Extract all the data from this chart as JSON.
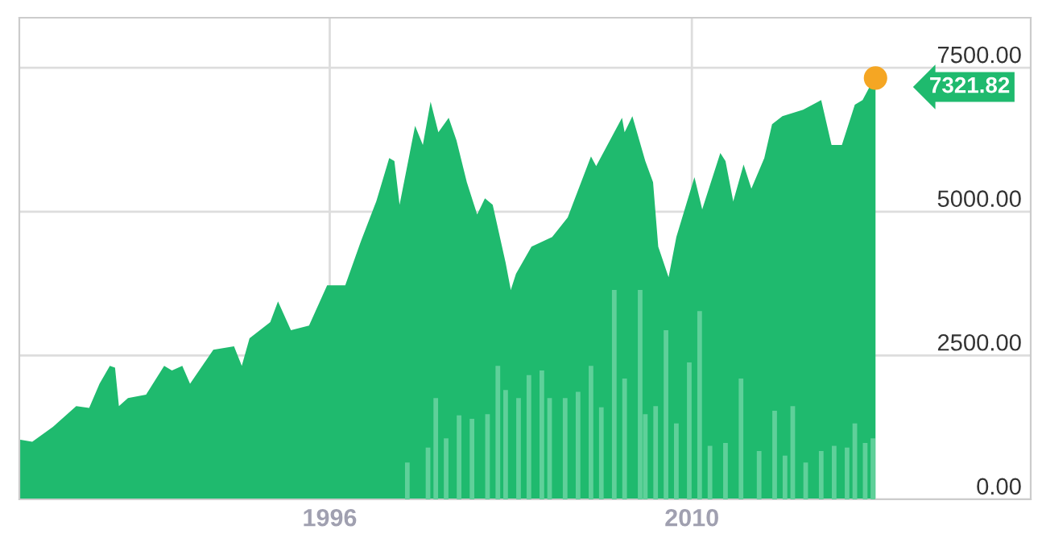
{
  "chart_data": {
    "type": "area",
    "xlim": [
      1984,
      2023.1
    ],
    "ylim": [
      0,
      8370
    ],
    "xticks": [
      1996,
      2010
    ],
    "yticks": [
      {
        "value": 0,
        "label": "0.00"
      },
      {
        "value": 2500,
        "label": "2500.00"
      },
      {
        "value": 5000,
        "label": "5000.00"
      },
      {
        "value": 7500,
        "label": "7500.00"
      }
    ],
    "grid": true,
    "legend": false,
    "annotations": [
      {
        "text": "7321.82",
        "x": 2017.1,
        "y": 7321.82
      }
    ],
    "series": [
      {
        "color": "#1fba6e",
        "x": [
          1984.0,
          1984.5,
          1985.3,
          1986.2,
          1986.7,
          1987.1,
          1987.5,
          1987.7,
          1987.85,
          1988.2,
          1988.9,
          1989.6,
          1989.9,
          1990.3,
          1990.6,
          1991.5,
          1992.3,
          1992.6,
          1992.9,
          1993.7,
          1994.0,
          1994.5,
          1995.2,
          1995.9,
          1996.6,
          1997.2,
          1997.8,
          1998.3,
          1998.5,
          1998.7,
          1999.3,
          1999.6,
          1999.9,
          2000.2,
          2000.6,
          2000.9,
          2001.3,
          2001.7,
          2002.0,
          2002.3,
          2002.8,
          2003.0,
          2003.2,
          2003.8,
          2004.6,
          2005.2,
          2006.1,
          2006.3,
          2007.3,
          2007.4,
          2007.7,
          2008.2,
          2008.5,
          2008.7,
          2009.1,
          2009.4,
          2010.1,
          2010.4,
          2011.1,
          2011.3,
          2011.6,
          2012.0,
          2012.3,
          2012.8,
          2013.1,
          2013.5,
          2014.3,
          2015.0,
          2015.4,
          2015.8,
          2016.3,
          2016.6,
          2017.0,
          2017.1
        ],
        "values": [
          1040,
          1000,
          1260,
          1620,
          1590,
          2010,
          2320,
          2290,
          1620,
          1760,
          1820,
          2320,
          2240,
          2320,
          2010,
          2600,
          2660,
          2320,
          2800,
          3080,
          3440,
          2940,
          3020,
          3720,
          3720,
          4480,
          5180,
          5930,
          5880,
          5120,
          6490,
          6160,
          6910,
          6380,
          6630,
          6240,
          5510,
          4950,
          5230,
          5120,
          4110,
          3640,
          3920,
          4390,
          4560,
          4900,
          5960,
          5790,
          6630,
          6380,
          6660,
          5880,
          5510,
          4390,
          3860,
          4560,
          5600,
          5040,
          6020,
          5880,
          5180,
          5820,
          5400,
          5930,
          6520,
          6660,
          6770,
          6940,
          6160,
          6160,
          6860,
          6940,
          7280,
          7321.82
        ]
      },
      {
        "type": "bar",
        "color": "#5fd09a",
        "x": [
          1999.0,
          1999.8,
          2000.1,
          2000.5,
          2001.0,
          2001.5,
          2002.1,
          2002.5,
          2002.8,
          2003.3,
          2003.7,
          2004.2,
          2004.5,
          2005.1,
          2005.6,
          2006.1,
          2006.5,
          2007.0,
          2007.4,
          2008.0,
          2008.2,
          2008.6,
          2009.0,
          2009.4,
          2009.9,
          2010.3,
          2010.7,
          2011.3,
          2011.9,
          2012.6,
          2013.2,
          2013.6,
          2013.9,
          2014.4,
          2015.0,
          2015.5,
          2016.0,
          2016.3,
          2016.7,
          2017.0
        ],
        "values": [
          640,
          900,
          1760,
          1060,
          1460,
          1400,
          1480,
          2320,
          1900,
          1760,
          2160,
          2240,
          1760,
          1760,
          1870,
          2320,
          1600,
          3640,
          2100,
          3640,
          1480,
          1620,
          2940,
          1320,
          2380,
          3270,
          930,
          980,
          2100,
          840,
          1540,
          760,
          1620,
          640,
          840,
          930,
          900,
          1320,
          980,
          1060
        ]
      },
      {
        "type": "scatter",
        "color": "#f5a623",
        "marker": "circle",
        "x": [
          2017.1
        ],
        "values": [
          7321.82
        ]
      }
    ]
  }
}
